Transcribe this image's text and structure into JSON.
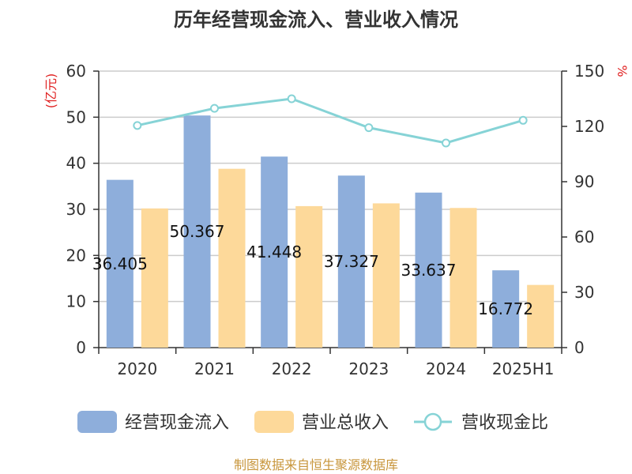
{
  "title": "历年经营现金流入、营业收入情况",
  "source": "制图数据来自恒生聚源数据库",
  "colors": {
    "cash_bar": "#8eaedb",
    "revenue_bar": "#fdd99a",
    "ratio_line": "#86d3d6",
    "unit_text": "#e02020",
    "source_text": "#c8963c"
  },
  "chart_data": {
    "type": "bar",
    "title": "历年经营现金流入、营业收入情况",
    "categories": [
      "2020",
      "2021",
      "2022",
      "2023",
      "2024",
      "2025H1"
    ],
    "left_axis": {
      "unit": "(亿元)",
      "ylim": [
        0,
        60
      ],
      "ticks": [
        "0",
        "10",
        "20",
        "30",
        "40",
        "50",
        "60"
      ]
    },
    "right_axis": {
      "unit": "%",
      "ylim": [
        0,
        150
      ],
      "ticks": [
        "0",
        "30",
        "60",
        "90",
        "120",
        "150"
      ]
    },
    "series": [
      {
        "name": "经营现金流入",
        "type": "bar",
        "axis": "left",
        "values": [
          36.405,
          50.367,
          41.448,
          37.327,
          33.637,
          16.772
        ],
        "labels": [
          "36.405",
          "50.367",
          "41.448",
          "37.327",
          "33.637",
          "16.772"
        ]
      },
      {
        "name": "营业总收入",
        "type": "bar",
        "axis": "left",
        "values": [
          30.2,
          38.8,
          30.7,
          31.3,
          30.3,
          13.6
        ]
      },
      {
        "name": "营收现金比",
        "type": "line",
        "axis": "right",
        "values": [
          120.5,
          129.8,
          135,
          119.3,
          111,
          123.3
        ]
      }
    ],
    "grid": true,
    "legend": "bottom"
  }
}
